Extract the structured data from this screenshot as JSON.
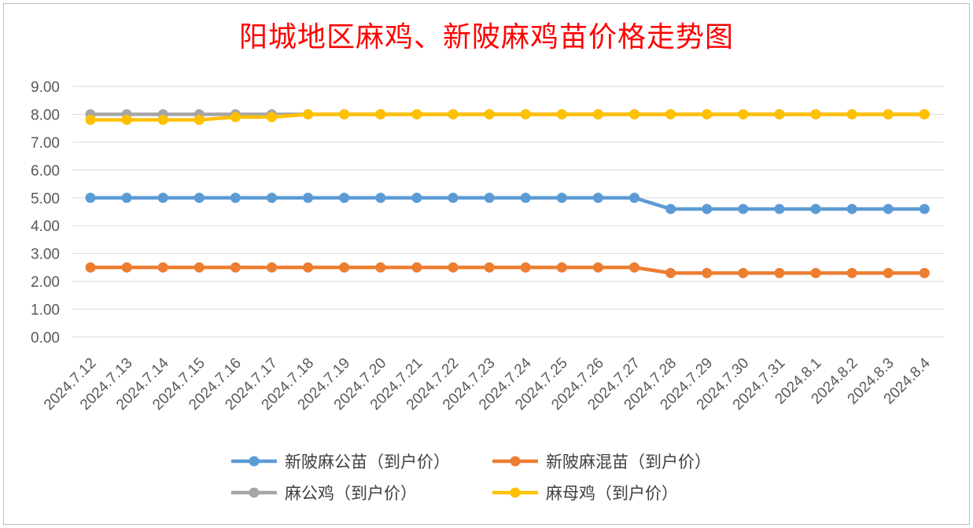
{
  "chart_data": {
    "type": "line",
    "title": "阳城地区麻鸡、新陂麻鸡苗价格走势图",
    "categories": [
      "2024.7.12",
      "2024.7.13",
      "2024.7.14",
      "2024.7.15",
      "2024.7.16",
      "2024.7.17",
      "2024.7.18",
      "2024.7.19",
      "2024.7.20",
      "2024.7.21",
      "2024.7.22",
      "2024.7.23",
      "2024.7.24",
      "2024.7.25",
      "2024.7.26",
      "2024.7.27",
      "2024.7.28",
      "2024.7.29",
      "2024.7.30",
      "2024.7.31",
      "2024.8.1",
      "2024.8.2",
      "2024.8.3",
      "2024.8.4"
    ],
    "yticks": [
      "0.00",
      "1.00",
      "2.00",
      "3.00",
      "4.00",
      "5.00",
      "6.00",
      "7.00",
      "8.00",
      "9.00"
    ],
    "ylim": [
      0,
      9
    ],
    "grid": true,
    "legend_position": "bottom",
    "series": [
      {
        "name": "新陂麻公苗（到户价）",
        "color": "#5b9bd5",
        "values": [
          5.0,
          5.0,
          5.0,
          5.0,
          5.0,
          5.0,
          5.0,
          5.0,
          5.0,
          5.0,
          5.0,
          5.0,
          5.0,
          5.0,
          5.0,
          5.0,
          4.6,
          4.6,
          4.6,
          4.6,
          4.6,
          4.6,
          4.6,
          4.6
        ]
      },
      {
        "name": "新陂麻混苗（到户价）",
        "color": "#ed7d31",
        "values": [
          2.5,
          2.5,
          2.5,
          2.5,
          2.5,
          2.5,
          2.5,
          2.5,
          2.5,
          2.5,
          2.5,
          2.5,
          2.5,
          2.5,
          2.5,
          2.5,
          2.3,
          2.3,
          2.3,
          2.3,
          2.3,
          2.3,
          2.3,
          2.3
        ]
      },
      {
        "name": "麻公鸡（到户价）",
        "color": "#a5a5a5",
        "values": [
          8.0,
          8.0,
          8.0,
          8.0,
          8.0,
          8.0,
          8.0,
          8.0,
          8.0,
          8.0,
          8.0,
          8.0,
          8.0,
          8.0,
          8.0,
          8.0,
          8.0,
          8.0,
          8.0,
          8.0,
          8.0,
          8.0,
          8.0,
          8.0
        ]
      },
      {
        "name": "麻母鸡（到户价）",
        "color": "#ffc000",
        "values": [
          7.8,
          7.8,
          7.8,
          7.8,
          7.9,
          7.9,
          8.0,
          8.0,
          8.0,
          8.0,
          8.0,
          8.0,
          8.0,
          8.0,
          8.0,
          8.0,
          8.0,
          8.0,
          8.0,
          8.0,
          8.0,
          8.0,
          8.0,
          8.0
        ]
      }
    ]
  }
}
